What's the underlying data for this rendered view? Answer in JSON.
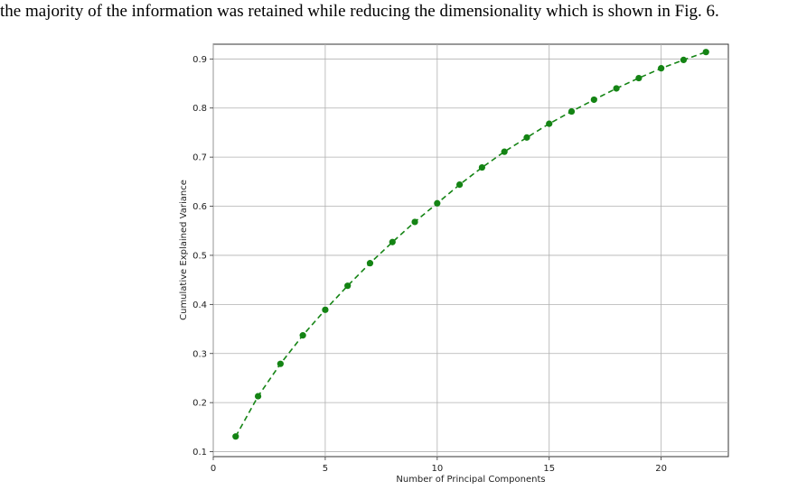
{
  "page": {
    "caption_text": "the majority of the information was retained while reducing the dimensionality which is shown in Fig. 6."
  },
  "chart_data": {
    "type": "line",
    "title": "",
    "xlabel": "Number of Principal Components",
    "ylabel": "Cumulative Explained Variance",
    "xlim": [
      0,
      23
    ],
    "ylim": [
      0.09,
      0.93
    ],
    "xticks": [
      0,
      5,
      10,
      15,
      20
    ],
    "yticks": [
      0.1,
      0.2,
      0.3,
      0.4,
      0.5,
      0.6,
      0.7,
      0.8,
      0.9
    ],
    "grid": true,
    "line_style": "dashed",
    "marker": "circle",
    "color": "#148414",
    "series": [
      {
        "x": [
          1,
          2,
          3,
          4,
          5,
          6,
          7,
          8,
          9,
          10,
          11,
          12,
          13,
          14,
          15,
          16,
          17,
          18,
          19,
          20,
          21,
          22
        ],
        "y": [
          0.131,
          0.213,
          0.279,
          0.337,
          0.389,
          0.438,
          0.484,
          0.527,
          0.568,
          0.606,
          0.644,
          0.679,
          0.711,
          0.74,
          0.768,
          0.793,
          0.817,
          0.84,
          0.861,
          0.881,
          0.898,
          0.914
        ]
      }
    ]
  }
}
